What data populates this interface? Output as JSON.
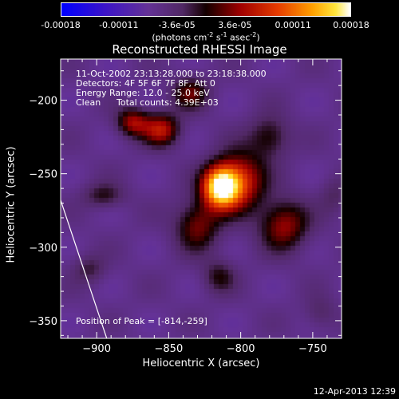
{
  "colorbar": {
    "tick_labels": [
      "-0.00018",
      "-0.00011",
      "-3.6e-05",
      "3.6e-05",
      "0.00011",
      "0.00018"
    ],
    "units_text": "(photons cm",
    "units_exp1": "-2",
    "units_mid1": " s",
    "units_exp2": "-1",
    "units_mid2": " asec",
    "units_exp3": "-2",
    "units_end": ")",
    "range": [
      -0.00018,
      0.00018
    ]
  },
  "chart_data": {
    "type": "heatmap",
    "title": "Reconstructed RHESSI Image",
    "xlabel": "Heliocentric X (arcsec)",
    "ylabel": "Heliocentric Y (arcsec)",
    "xlim": [
      -925,
      -730
    ],
    "ylim": [
      -362,
      -172
    ],
    "x_ticks": [
      -900,
      -850,
      -800,
      -750
    ],
    "y_ticks": [
      -200,
      -250,
      -300,
      -350
    ],
    "x_tick_labels": [
      "−900",
      "−850",
      "−800",
      "−750"
    ],
    "y_tick_labels": [
      "−200",
      "−250",
      "−300",
      "−350"
    ],
    "peak": [
      -814,
      -259
    ],
    "sources": [
      {
        "x": -814,
        "y": -259,
        "amp": 1.0,
        "sx": 9,
        "sy": 10
      },
      {
        "x": -800,
        "y": -255,
        "amp": 0.55,
        "sx": 12,
        "sy": 14
      },
      {
        "x": -770,
        "y": -285,
        "amp": 0.45,
        "sx": 12,
        "sy": 12
      },
      {
        "x": -830,
        "y": -285,
        "amp": 0.4,
        "sx": 11,
        "sy": 12
      },
      {
        "x": -855,
        "y": -220,
        "amp": 0.5,
        "sx": 9,
        "sy": 8
      },
      {
        "x": -875,
        "y": -215,
        "amp": 0.45,
        "sx": 8,
        "sy": 7
      },
      {
        "x": -835,
        "y": -195,
        "amp": 0.35,
        "sx": 9,
        "sy": 8
      },
      {
        "x": -895,
        "y": -265,
        "amp": 0.25,
        "sx": 10,
        "sy": 6
      },
      {
        "x": -780,
        "y": -225,
        "amp": 0.3,
        "sx": 10,
        "sy": 10
      },
      {
        "x": -905,
        "y": -315,
        "amp": 0.2,
        "sx": 8,
        "sy": 7
      },
      {
        "x": -815,
        "y": -320,
        "amp": 0.25,
        "sx": 8,
        "sy": 8
      },
      {
        "x": -745,
        "y": -345,
        "amp": 0.15,
        "sx": 8,
        "sy": 8
      },
      {
        "x": -735,
        "y": -265,
        "amp": 0.15,
        "sx": 7,
        "sy": 9
      }
    ]
  },
  "annotations": {
    "time_range": "11-Oct-2002 23:13:28.000 to 23:18:38.000",
    "detectors": "Detectors: 4F 5F 6F 7F 8F, Att 0",
    "energy_range": "Energy Range: 12.0 - 25.0 keV",
    "clean": "Clean",
    "total_counts": "Total counts: 4.39E+03",
    "peak_position": "Position of Peak = [-814,-259]"
  },
  "footer": {
    "date": "12-Apr-2013 12:39"
  },
  "colors": {
    "background": "#000000",
    "limb_line": "#ffffff"
  }
}
